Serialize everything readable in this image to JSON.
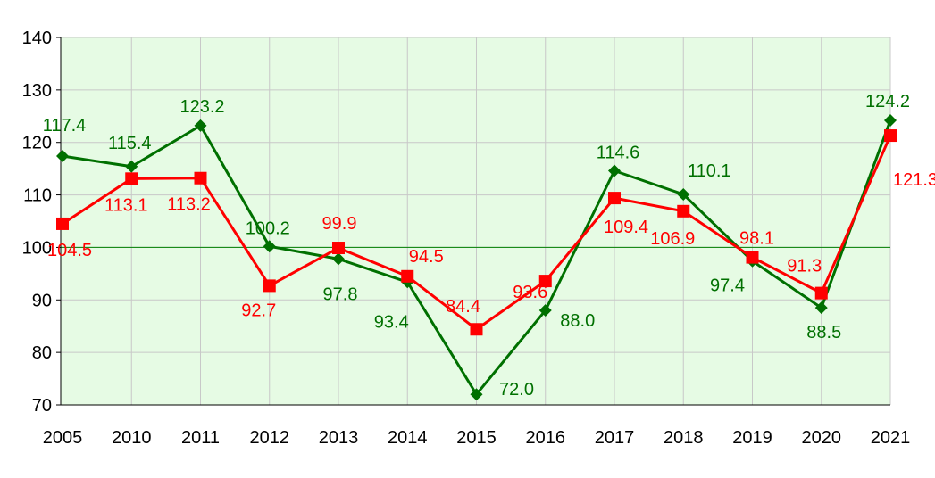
{
  "chart_data": {
    "type": "line",
    "title": "",
    "xlabel": "",
    "ylabel": "",
    "categories": [
      "2005",
      "2010",
      "2011",
      "2012",
      "2013",
      "2014",
      "2015",
      "2016",
      "2017",
      "2018",
      "2019",
      "2020",
      "2021"
    ],
    "ylim": [
      70,
      140
    ],
    "yticks": [
      "70",
      "80",
      "90",
      "100",
      "110",
      "120",
      "130",
      "140"
    ],
    "grid": true,
    "reference_line": 100,
    "plot_background": "#e6fbe4",
    "series": [
      {
        "color": "#007000",
        "marker": "diamond",
        "values": [
          117.4,
          115.4,
          123.2,
          100.2,
          97.8,
          93.4,
          72.0,
          88.0,
          114.6,
          110.1,
          97.4,
          88.5,
          124.2
        ],
        "labels": [
          "117.4",
          "115.4",
          "123.2",
          "100.2",
          "97.8",
          "93.4",
          "72.0",
          "88.0",
          "114.6",
          "110.1",
          "97.4",
          "88.5",
          "124.2"
        ]
      },
      {
        "color": "#ff0000",
        "marker": "square",
        "values": [
          104.5,
          113.1,
          113.2,
          92.7,
          99.9,
          94.5,
          84.4,
          93.6,
          109.4,
          106.9,
          98.1,
          91.3,
          121.3
        ],
        "labels": [
          "104.5",
          "113.1",
          "113.2",
          "92.7",
          "99.9",
          "94.5",
          "84.4",
          "93.6",
          "109.4",
          "106.9",
          "98.1",
          "91.3",
          "121.3"
        ]
      }
    ]
  }
}
